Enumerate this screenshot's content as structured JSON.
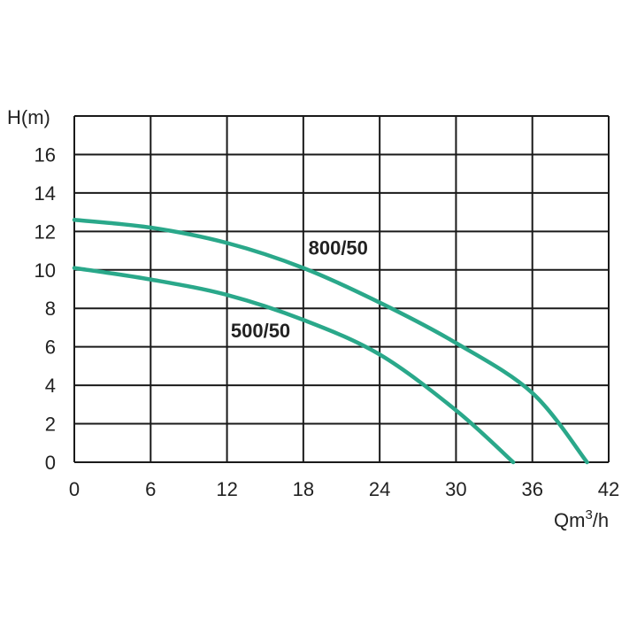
{
  "chart_data": {
    "type": "line",
    "title": "",
    "xlabel": "Qm",
    "xlabel_sup": "3",
    "xlabel_tail": "/h",
    "ylabel": "H(m)",
    "xlim": [
      0,
      42
    ],
    "ylim": [
      0,
      18
    ],
    "xticks": [
      0,
      6,
      12,
      18,
      24,
      30,
      36,
      42
    ],
    "yticks": [
      0,
      2,
      4,
      6,
      8,
      10,
      12,
      14,
      16
    ],
    "grid": true,
    "curve_color": "#2aa88a",
    "series": [
      {
        "name": "800/50",
        "x": [
          0,
          6,
          12,
          18,
          24,
          30,
          36,
          40.3
        ],
        "y": [
          12.6,
          12.2,
          11.4,
          10.1,
          8.3,
          6.2,
          3.6,
          0
        ]
      },
      {
        "name": "500/50",
        "x": [
          0,
          6,
          12,
          18,
          24,
          30,
          34.5
        ],
        "y": [
          10.1,
          9.5,
          8.7,
          7.4,
          5.6,
          2.7,
          0
        ]
      }
    ]
  }
}
